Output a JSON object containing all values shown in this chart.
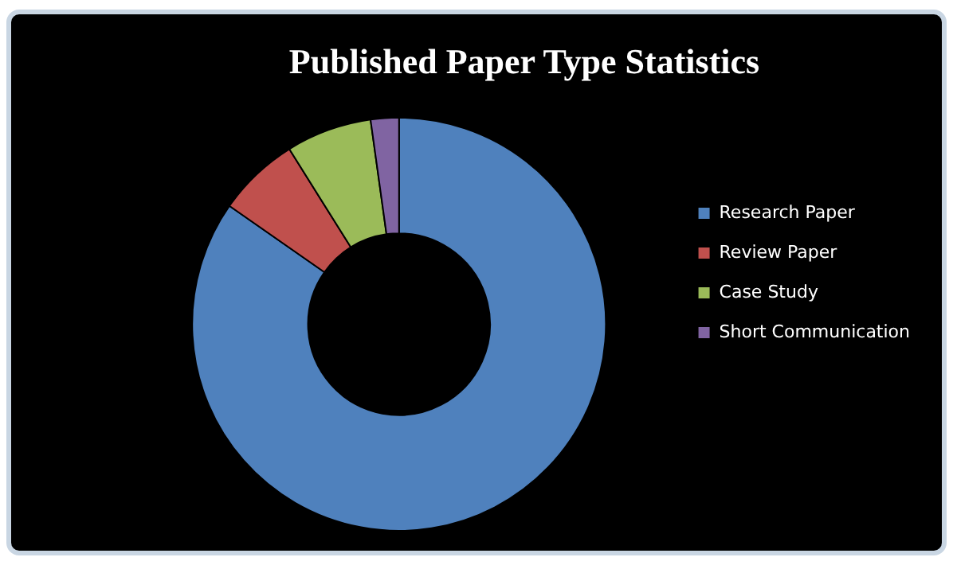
{
  "chart_data": {
    "type": "donut",
    "title": "Published Paper Type Statistics",
    "categories": [
      "Research Paper",
      "Review Paper",
      "Case Study",
      "Short Communication"
    ],
    "values": [
      84.7,
      6.4,
      6.7,
      2.2
    ],
    "colors": [
      "#4f81bd",
      "#c0504d",
      "#9bbb59",
      "#8064a2"
    ],
    "legend": "right"
  }
}
